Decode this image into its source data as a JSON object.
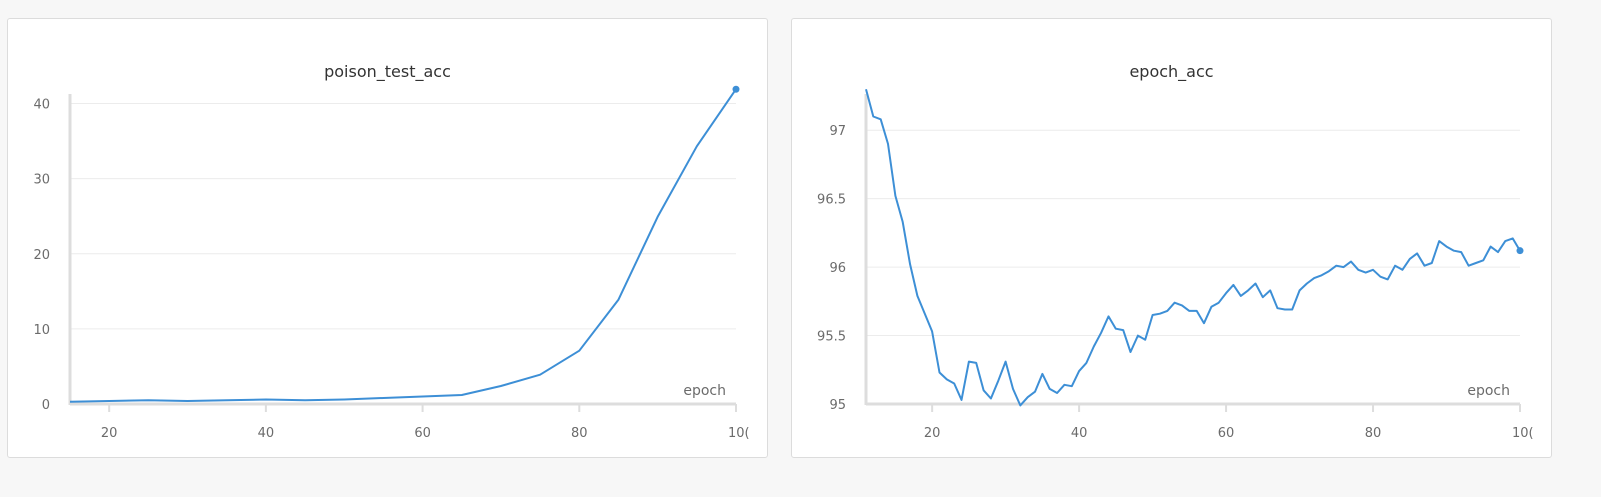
{
  "colors": {
    "line": "#3d8fd6",
    "grid": "#ececec",
    "axis": "#dddddd",
    "text": "#6b6b6b",
    "title": "#333333"
  },
  "chart_data": [
    {
      "type": "line",
      "title": "poison_test_acc",
      "xlabel": "epoch",
      "ylabel": "",
      "xlim": [
        15,
        100
      ],
      "ylim": [
        0,
        41
      ],
      "xticks": [
        20,
        40,
        60,
        80
      ],
      "xtick_labels": [
        "20",
        "40",
        "60",
        "80"
      ],
      "last_xtick_label": "10(",
      "yticks": [
        0,
        10,
        20,
        30,
        40
      ],
      "ytick_labels": [
        "0",
        "10",
        "20",
        "30",
        "40"
      ],
      "grid": true,
      "series": [
        {
          "x": [
            15,
            20,
            25,
            30,
            35,
            40,
            45,
            50,
            55,
            60,
            65,
            70,
            75,
            80,
            85,
            90,
            95,
            100
          ],
          "y": [
            0.3,
            0.4,
            0.5,
            0.4,
            0.5,
            0.6,
            0.5,
            0.6,
            0.8,
            1.0,
            1.2,
            2.4,
            3.9,
            7.1,
            13.9,
            24.9,
            34.3,
            41.9
          ],
          "end_marker": true
        }
      ]
    },
    {
      "type": "line",
      "title": "epoch_acc",
      "xlabel": "epoch",
      "ylabel": "",
      "xlim": [
        11,
        100
      ],
      "ylim": [
        95,
        97.25
      ],
      "xticks": [
        20,
        40,
        60,
        80
      ],
      "xtick_labels": [
        "20",
        "40",
        "60",
        "80"
      ],
      "last_xtick_label": "10(",
      "yticks": [
        95,
        95.5,
        96,
        96.5,
        97
      ],
      "ytick_labels": [
        "95",
        "95.5",
        "96",
        "96.5",
        "97"
      ],
      "grid": true,
      "series": [
        {
          "x": [
            11,
            12,
            13,
            14,
            15,
            16,
            17,
            18,
            19,
            20,
            21,
            22,
            23,
            24,
            25,
            26,
            27,
            28,
            29,
            30,
            31,
            32,
            33,
            34,
            35,
            36,
            37,
            38,
            39,
            40,
            41,
            42,
            43,
            44,
            45,
            46,
            47,
            48,
            49,
            50,
            51,
            52,
            53,
            54,
            55,
            56,
            57,
            58,
            59,
            60,
            61,
            62,
            63,
            64,
            65,
            66,
            67,
            68,
            69,
            70,
            71,
            72,
            73,
            74,
            75,
            76,
            77,
            78,
            79,
            80,
            81,
            82,
            83,
            84,
            85,
            86,
            87,
            88,
            89,
            90,
            91,
            92,
            93,
            94,
            95,
            96,
            97,
            98,
            99,
            100
          ],
          "y": [
            97.3,
            97.1,
            97.08,
            96.9,
            96.52,
            96.33,
            96.02,
            95.79,
            95.66,
            95.53,
            95.23,
            95.18,
            95.15,
            95.03,
            95.31,
            95.3,
            95.1,
            95.04,
            95.17,
            95.31,
            95.11,
            94.99,
            95.05,
            95.09,
            95.22,
            95.11,
            95.08,
            95.14,
            95.13,
            95.24,
            95.3,
            95.42,
            95.52,
            95.64,
            95.55,
            95.54,
            95.38,
            95.5,
            95.47,
            95.65,
            95.66,
            95.68,
            95.74,
            95.72,
            95.68,
            95.68,
            95.59,
            95.71,
            95.74,
            95.81,
            95.87,
            95.79,
            95.83,
            95.88,
            95.78,
            95.83,
            95.7,
            95.69,
            95.69,
            95.83,
            95.88,
            95.92,
            95.94,
            95.97,
            96.01,
            96.0,
            96.04,
            95.98,
            95.96,
            95.98,
            95.93,
            95.91,
            96.01,
            95.98,
            96.06,
            96.1,
            96.01,
            96.03,
            96.19,
            96.15,
            96.12,
            96.11,
            96.01,
            96.03,
            96.05,
            96.15,
            96.11,
            96.19,
            96.21,
            96.12
          ],
          "end_marker": true
        }
      ]
    }
  ]
}
